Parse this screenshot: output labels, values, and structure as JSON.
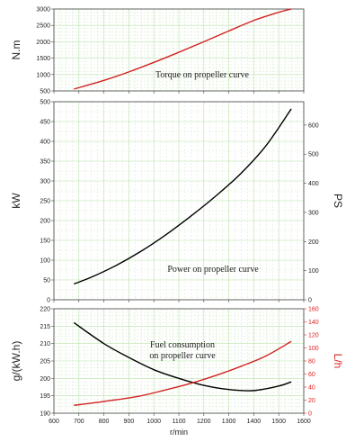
{
  "chart_data": [
    {
      "type": "line",
      "annotation": [
        "Torque on propeller curve"
      ],
      "ylabel": "N.m",
      "xlim": [
        600,
        1600
      ],
      "ylim": [
        500,
        3000
      ],
      "grid": true,
      "series": [
        {
          "color": "#d22222",
          "points": [
            [
              680,
              555
            ],
            [
              800,
              820
            ],
            [
              900,
              1080
            ],
            [
              1000,
              1370
            ],
            [
              1100,
              1680
            ],
            [
              1200,
              2000
            ],
            [
              1300,
              2330
            ],
            [
              1400,
              2650
            ],
            [
              1500,
              2900
            ],
            [
              1550,
              3000
            ]
          ]
        }
      ]
    },
    {
      "type": "line",
      "annotation": [
        "Power on propeller curve"
      ],
      "ylabel": "kW",
      "y2label": "PS",
      "xlim": [
        600,
        1600
      ],
      "ylim": [
        0,
        500
      ],
      "y2lim": [
        0,
        680
      ],
      "grid": true,
      "series": [
        {
          "color": "#000000",
          "points": [
            [
              680,
              40
            ],
            [
              750,
              57
            ],
            [
              850,
              87
            ],
            [
              950,
              123
            ],
            [
              1050,
              165
            ],
            [
              1150,
              212
            ],
            [
              1250,
              263
            ],
            [
              1350,
              320
            ],
            [
              1450,
              390
            ],
            [
              1550,
              482
            ]
          ]
        }
      ]
    },
    {
      "type": "line",
      "annotation": [
        "Fuel consumption",
        "on propeller curve"
      ],
      "xlabel": "r/min",
      "ylabel": "g/(kW.h)",
      "y2label": "L/h",
      "xlim": [
        600,
        1600
      ],
      "ylim": [
        190,
        220
      ],
      "y2lim": [
        0,
        160
      ],
      "grid": true,
      "series": [
        {
          "axis": "left",
          "color": "#000000",
          "points": [
            [
              680,
              216
            ],
            [
              800,
              210
            ],
            [
              900,
              206
            ],
            [
              1000,
              202.5
            ],
            [
              1100,
              200
            ],
            [
              1200,
              198
            ],
            [
              1300,
              196.8
            ],
            [
              1400,
              196.5
            ],
            [
              1500,
              197.8
            ],
            [
              1550,
              199
            ]
          ]
        },
        {
          "axis": "right",
          "color": "#d22222",
          "points": [
            [
              680,
              12
            ],
            [
              800,
              18
            ],
            [
              940,
              26
            ],
            [
              1050,
              36
            ],
            [
              1150,
              46
            ],
            [
              1250,
              58
            ],
            [
              1350,
              72
            ],
            [
              1450,
              88
            ],
            [
              1550,
              110
            ]
          ]
        }
      ]
    }
  ]
}
